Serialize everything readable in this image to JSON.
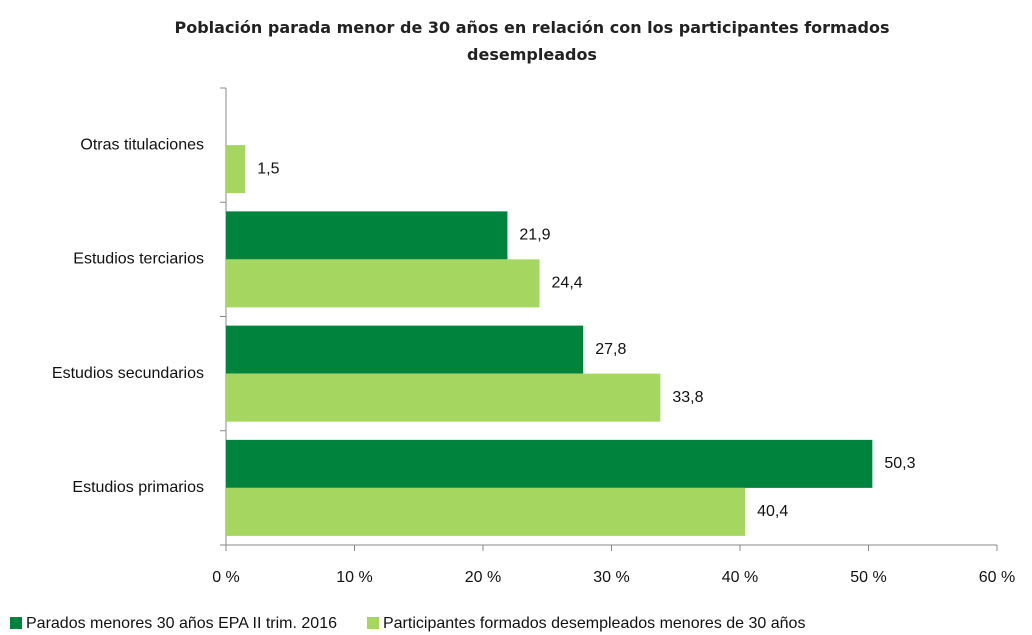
{
  "chart_data": {
    "type": "hbar",
    "title": "Población parada menor de 30 años en relación con los participantes formados desempleados",
    "categories": [
      "Otras titulaciones",
      "Estudios terciarios",
      "Estudios secundarios",
      "Estudios primarios"
    ],
    "series": [
      {
        "name": "Parados menores 30 años EPA II trim. 2016",
        "color": "#00843d",
        "values": [
          null,
          21.9,
          27.8,
          50.3
        ],
        "value_labels": [
          null,
          "21,9",
          "27,8",
          "50,3"
        ]
      },
      {
        "name": "Participantes formados desempleados menores de 30 años",
        "color": "#a5d65f",
        "values": [
          1.5,
          24.4,
          33.8,
          40.4
        ],
        "value_labels": [
          "1,5",
          "24,4",
          "33,8",
          "40,4"
        ]
      }
    ],
    "xlim": [
      0,
      60
    ],
    "xticks": [
      {
        "value": 0,
        "label": "0 %"
      },
      {
        "value": 10,
        "label": "10 %"
      },
      {
        "value": 20,
        "label": "20 %"
      },
      {
        "value": 30,
        "label": "30 %"
      },
      {
        "value": 40,
        "label": "40 %"
      },
      {
        "value": 50,
        "label": "50 %"
      },
      {
        "value": 60,
        "label": "60 %"
      }
    ],
    "legend": "bottom"
  }
}
